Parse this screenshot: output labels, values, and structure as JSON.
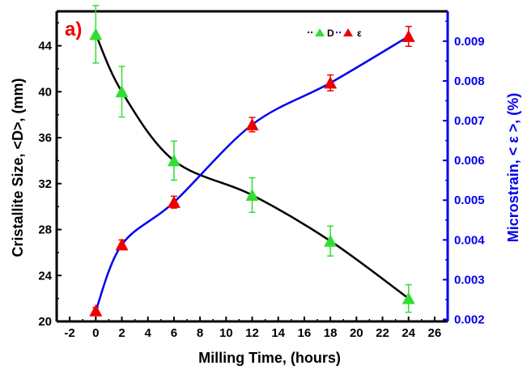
{
  "chart_data": {
    "type": "line",
    "panel_label": "a)",
    "xlabel": "Milling Time, (hours)",
    "ylabel_left": "Cristallite Size, <D>, (mm)",
    "ylabel_right": "Microstrain, < ε >, (%)",
    "xlim": [
      -3,
      27
    ],
    "xticks": [
      -2,
      0,
      2,
      4,
      6,
      8,
      10,
      12,
      14,
      16,
      18,
      20,
      22,
      24,
      26
    ],
    "ylim_left": [
      20,
      47
    ],
    "yticks_left": [
      20,
      24,
      28,
      32,
      36,
      40,
      44
    ],
    "ylim_right": [
      0.00195,
      0.00975
    ],
    "yticks_right": [
      "0.002",
      "0.003",
      "0.004",
      "0.005",
      "0.006",
      "0.007",
      "0.008",
      "0.009"
    ],
    "legend_position": "top-right",
    "grid": false,
    "series": [
      {
        "name": "D",
        "axis": "left",
        "line_color": "#000000",
        "marker_color": "#33dd33",
        "errbar_color": "#33dd33",
        "x": [
          0,
          2,
          6,
          12,
          18,
          24
        ],
        "y": [
          45,
          40,
          34,
          31,
          27,
          22
        ],
        "err": [
          2.5,
          2.2,
          1.7,
          1.5,
          1.3,
          1.2
        ]
      },
      {
        "name": "ε",
        "axis": "right",
        "line_color": "#0000ee",
        "marker_color": "#ee0000",
        "errbar_color": "#ee0000",
        "x": [
          0,
          2,
          6,
          12,
          18,
          24
        ],
        "y": [
          0.00222,
          0.00388,
          0.00495,
          0.0069,
          0.00795,
          0.00912
        ],
        "err": [
          8e-05,
          0.00012,
          0.00015,
          0.00018,
          0.0002,
          0.00025
        ]
      }
    ]
  },
  "colors": {
    "left_axis": "#000000",
    "right_axis": "#0000ee",
    "panel_label": "#ee0000"
  }
}
